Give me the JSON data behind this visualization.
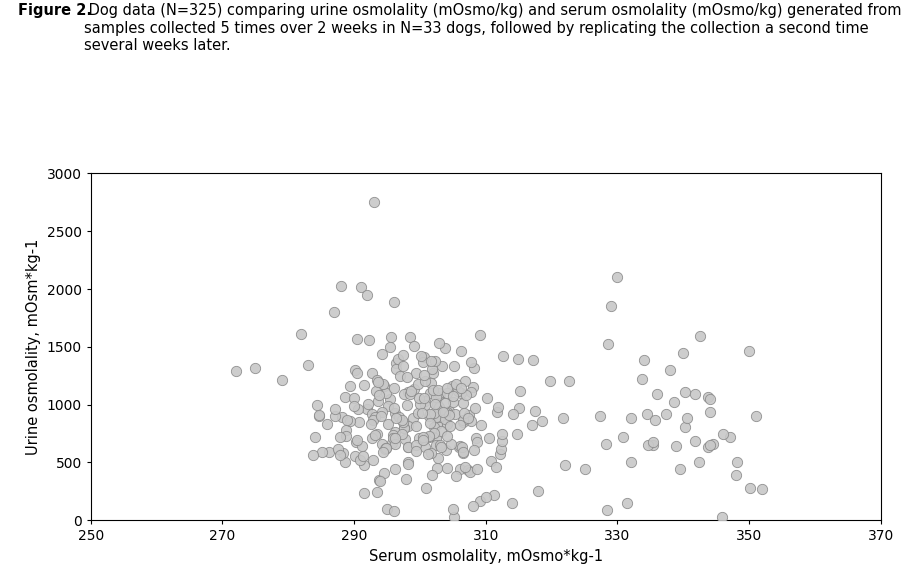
{
  "title_bold": "Figure 2.",
  "title_rest": " Dog data (N=325) comparing urine osmolality (mOsmo/kg) and serum osmolality (mOsmo/kg) generated from samples collected 5 times over 2 weeks in N=33 dogs, followed by replicating the collection a second time several weeks later.",
  "xlabel": "Serum osmolality, mOsmo*kg-1",
  "ylabel": "Urine osmolality, mOsm*kg-1",
  "xlim": [
    250,
    370
  ],
  "ylim": [
    0,
    3000
  ],
  "xticks": [
    250,
    270,
    290,
    310,
    330,
    350,
    370
  ],
  "yticks": [
    0,
    500,
    1000,
    1500,
    2000,
    2500,
    3000
  ],
  "marker_facecolor": "#c8c8c8",
  "marker_edgecolor": "#888888",
  "marker_size": 55,
  "background_color": "#ffffff",
  "border_color": "#000000",
  "seed": 42,
  "title_fontsize": 10.5,
  "axis_label_fontsize": 10.5,
  "tick_fontsize": 10
}
